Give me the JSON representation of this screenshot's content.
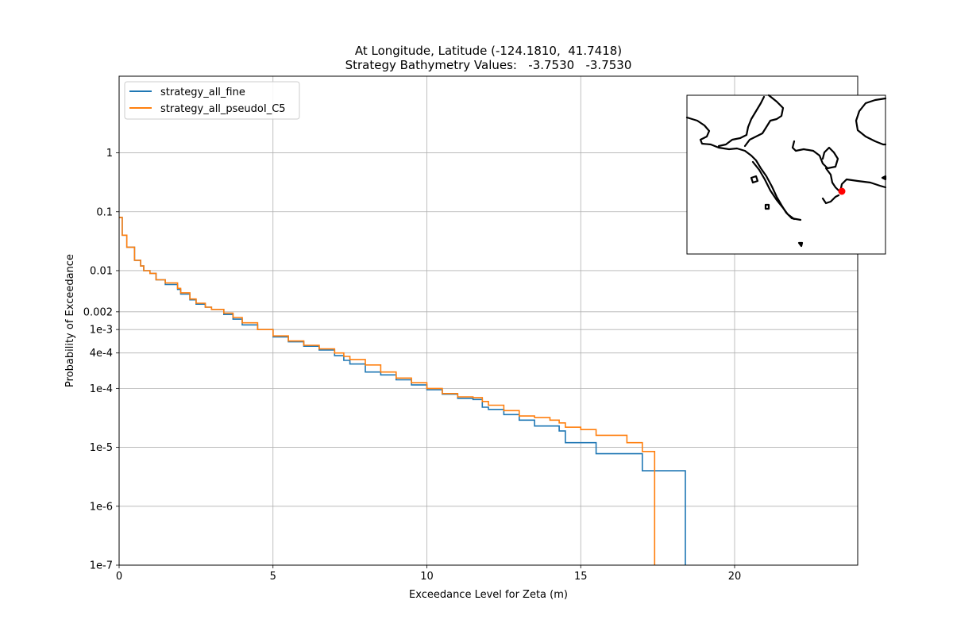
{
  "chart_data": {
    "type": "line",
    "title": "At Longitude, Latitude (-124.1810,  41.7418)",
    "subtitle": "Strategy Bathymetry Values:   -3.7530   -3.7530",
    "xlabel": "Exceedance Level for Zeta (m)",
    "ylabel": "Probability of Exceedance",
    "xlim": [
      0,
      24
    ],
    "ylim": [
      1e-07,
      20
    ],
    "yscale": "log",
    "grid": true,
    "legend_position": "top-left",
    "x_ticks": [
      0,
      5,
      10,
      15,
      20
    ],
    "x_tick_labels": [
      "0",
      "5",
      "10",
      "15",
      "20"
    ],
    "y_ticks": [
      1e-07,
      1e-06,
      1e-05,
      0.0001,
      0.0004,
      0.001,
      0.002,
      0.01,
      0.1,
      1
    ],
    "y_tick_labels": [
      "1e-7",
      "1e-6",
      "1e-5",
      "1e-4",
      "4e-4",
      "1e-3",
      "0.002",
      "0.01",
      "0.1",
      "1"
    ],
    "series": [
      {
        "name": "strategy_all_fine",
        "color": "#1f77b4",
        "x": [
          0.0,
          0.1,
          0.25,
          0.5,
          0.7,
          0.8,
          1.0,
          1.2,
          1.5,
          1.9,
          2.0,
          2.3,
          2.5,
          2.8,
          3.0,
          3.4,
          3.7,
          4.0,
          4.5,
          5.0,
          5.5,
          6.0,
          6.5,
          7.0,
          7.3,
          7.5,
          8.0,
          8.5,
          9.0,
          9.5,
          10.0,
          10.5,
          11.0,
          11.5,
          11.8,
          12.0,
          12.5,
          13.0,
          13.5,
          14.0,
          14.3,
          14.5,
          15.0,
          15.5,
          16.0,
          16.5,
          16.9,
          17.0,
          17.5,
          18.0,
          18.4,
          18.4
        ],
        "y": [
          0.08,
          0.04,
          0.025,
          0.015,
          0.012,
          0.01,
          0.009,
          0.007,
          0.0058,
          0.0048,
          0.004,
          0.0032,
          0.0027,
          0.0024,
          0.0022,
          0.0018,
          0.0015,
          0.0012,
          0.001,
          0.00075,
          0.00062,
          0.00052,
          0.00045,
          0.00036,
          0.0003,
          0.00026,
          0.00019,
          0.00017,
          0.00014,
          0.000115,
          9.5e-05,
          8e-05,
          6.8e-05,
          6.5e-05,
          4.8e-05,
          4.4e-05,
          3.6e-05,
          2.9e-05,
          2.3e-05,
          2.3e-05,
          1.9e-05,
          1.2e-05,
          1.2e-05,
          7.8e-06,
          7.8e-06,
          7.8e-06,
          7.8e-06,
          4e-06,
          4e-06,
          4e-06,
          4e-06,
          1e-07
        ]
      },
      {
        "name": "strategy_all_pseudoI_C5",
        "color": "#ff7f0e",
        "x": [
          0.0,
          0.1,
          0.25,
          0.5,
          0.7,
          0.8,
          1.0,
          1.2,
          1.5,
          1.9,
          2.0,
          2.3,
          2.5,
          2.8,
          3.0,
          3.4,
          3.7,
          4.0,
          4.5,
          5.0,
          5.5,
          6.0,
          6.5,
          7.0,
          7.3,
          7.5,
          8.0,
          8.5,
          9.0,
          9.5,
          10.0,
          10.5,
          11.0,
          11.5,
          11.8,
          12.0,
          12.5,
          13.0,
          13.5,
          14.0,
          14.3,
          14.5,
          15.0,
          15.5,
          16.0,
          16.5,
          16.9,
          17.0,
          17.2,
          17.4,
          17.4
        ],
        "y": [
          0.08,
          0.04,
          0.025,
          0.015,
          0.012,
          0.01,
          0.009,
          0.007,
          0.0062,
          0.005,
          0.0042,
          0.0033,
          0.0028,
          0.0024,
          0.0022,
          0.0019,
          0.0016,
          0.0013,
          0.001,
          0.00078,
          0.00064,
          0.00054,
          0.00047,
          0.0004,
          0.00035,
          0.00031,
          0.00025,
          0.00019,
          0.00015,
          0.000125,
          0.0001,
          8.2e-05,
          7.2e-05,
          7e-05,
          6e-05,
          5.2e-05,
          4.2e-05,
          3.4e-05,
          3.2e-05,
          2.9e-05,
          2.6e-05,
          2.2e-05,
          2e-05,
          1.6e-05,
          1.6e-05,
          1.2e-05,
          1.2e-05,
          8.5e-06,
          8.5e-06,
          4e-06,
          1e-07
        ]
      }
    ]
  },
  "inset_map": {
    "marker_color": "#ff0000",
    "coastline_color": "#000000"
  }
}
